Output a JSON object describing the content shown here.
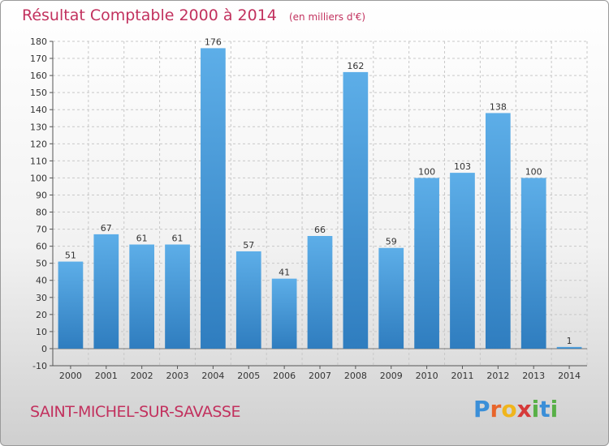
{
  "header": {
    "title": "Résultat Comptable 2000 à 2014",
    "subtitle": "(en milliers d'€)"
  },
  "footer": {
    "commune": "SAINT-MICHEL-SUR-SAVASSE",
    "brand_letters": [
      "P",
      "r",
      "o",
      "x",
      "i",
      "t",
      "i"
    ],
    "brand_colors": [
      "#3b8fd8",
      "#e8652b",
      "#f0b51c",
      "#d63a3a",
      "#58b047",
      "#3b8fd8",
      "#58b047"
    ]
  },
  "colors": {
    "bar_top": "#5daee8",
    "bar_bottom": "#2f7dbf",
    "grid": "#c8c8c8",
    "title": "#c2315e"
  },
  "chart_data": {
    "type": "bar",
    "title": "Résultat Comptable 2000 à 2014",
    "subtitle": "(en milliers d'€)",
    "xlabel": "",
    "ylabel": "",
    "ylim": [
      -10,
      180
    ],
    "yticks": [
      -10,
      0,
      10,
      20,
      30,
      40,
      50,
      60,
      70,
      80,
      90,
      100,
      110,
      120,
      130,
      140,
      150,
      160,
      170,
      180
    ],
    "categories": [
      "2000",
      "2001",
      "2002",
      "2003",
      "2004",
      "2005",
      "2006",
      "2007",
      "2008",
      "2009",
      "2010",
      "2011",
      "2012",
      "2013",
      "2014"
    ],
    "values": [
      51,
      67,
      61,
      61,
      176,
      57,
      41,
      66,
      162,
      59,
      100,
      103,
      138,
      100,
      1
    ],
    "grid": true
  }
}
